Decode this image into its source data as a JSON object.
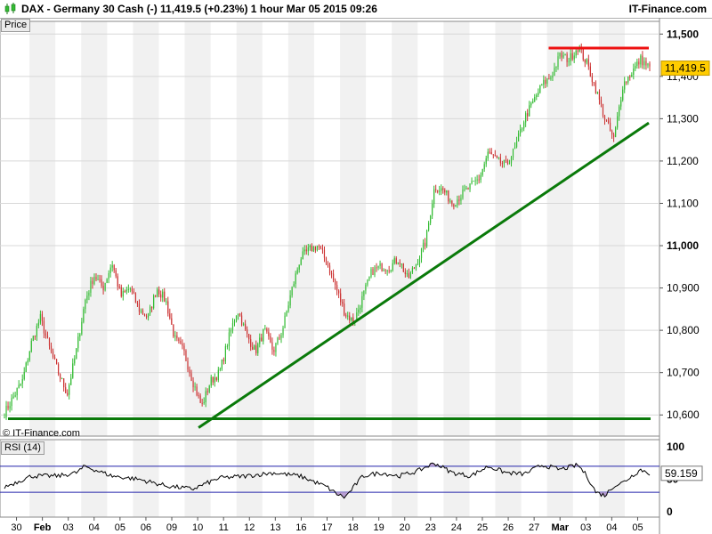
{
  "header": {
    "title": "DAX - Germany 30 Cash (-)      11,419.5 (+0.23%)      1 hour  Mar 05 2015 09:26",
    "brand": "IT-Finance.com"
  },
  "credit": "© IT-Finance.com",
  "colors": {
    "up": "#33bb33",
    "down": "#cc3333",
    "trendline": "#0a7a0a",
    "resistance": "#ee1111",
    "rsi_line": "#000000",
    "rsi_bands": "#2222aa",
    "rsi_fill": "#b59ad0",
    "price_tag": "#ffcc00"
  },
  "chart_data": [
    {
      "type": "candlestick",
      "title": "Price",
      "ylim": [
        10550,
        11530
      ],
      "yticks": [
        "11,500",
        "11,400",
        "11,300",
        "11,200",
        "11,100",
        "11,000",
        "10,900",
        "10,800",
        "10,700",
        "10,600"
      ],
      "ytick_values": [
        11500,
        11400,
        11300,
        11200,
        11100,
        11000,
        10900,
        10800,
        10700,
        10600
      ],
      "last_value": 11419.5,
      "last_label": "11,419.5",
      "xticks": [
        "30",
        "Feb",
        "03",
        "04",
        "05",
        "06",
        "09",
        "10",
        "11",
        "12",
        "13",
        "16",
        "17",
        "18",
        "19",
        "20",
        "23",
        "24",
        "25",
        "26",
        "27",
        "Mar",
        "03",
        "04",
        "05"
      ],
      "grid": true,
      "anchors": [
        [
          0,
          10605
        ],
        [
          2,
          10680
        ],
        [
          3,
          10770
        ],
        [
          4,
          10830
        ],
        [
          5,
          10760
        ],
        [
          6,
          10700
        ],
        [
          7,
          10650
        ],
        [
          8,
          10750
        ],
        [
          9,
          10870
        ],
        [
          10,
          10930
        ],
        [
          11,
          10900
        ],
        [
          12,
          10960
        ],
        [
          13,
          10880
        ],
        [
          14,
          10900
        ],
        [
          15,
          10850
        ],
        [
          16,
          10830
        ],
        [
          17,
          10900
        ],
        [
          18,
          10870
        ],
        [
          19,
          10780
        ],
        [
          20,
          10750
        ],
        [
          21,
          10680
        ],
        [
          22,
          10620
        ],
        [
          23,
          10680
        ],
        [
          24,
          10700
        ],
        [
          25,
          10780
        ],
        [
          26,
          10850
        ],
        [
          27,
          10790
        ],
        [
          28,
          10750
        ],
        [
          29,
          10800
        ],
        [
          30,
          10750
        ],
        [
          31,
          10800
        ],
        [
          32,
          10890
        ],
        [
          33,
          10970
        ],
        [
          34,
          10990
        ],
        [
          35,
          11000
        ],
        [
          36,
          10960
        ],
        [
          37,
          10900
        ],
        [
          38,
          10840
        ],
        [
          39,
          10820
        ],
        [
          40,
          10880
        ],
        [
          41,
          10940
        ],
        [
          42,
          10950
        ],
        [
          43,
          10950
        ],
        [
          44,
          10970
        ],
        [
          45,
          10920
        ],
        [
          46,
          10960
        ],
        [
          47,
          11010
        ],
        [
          48,
          11140
        ],
        [
          49,
          11130
        ],
        [
          50,
          11100
        ],
        [
          51,
          11120
        ],
        [
          52,
          11140
        ],
        [
          53,
          11160
        ],
        [
          54,
          11220
        ],
        [
          55,
          11200
        ],
        [
          56,
          11190
        ],
        [
          57,
          11230
        ],
        [
          58,
          11300
        ],
        [
          59,
          11340
        ],
        [
          60,
          11380
        ],
        [
          61,
          11400
        ],
        [
          62,
          11450
        ],
        [
          63,
          11440
        ],
        [
          64,
          11470
        ],
        [
          65,
          11430
        ],
        [
          66,
          11370
        ],
        [
          67,
          11300
        ],
        [
          68,
          11250
        ],
        [
          69,
          11380
        ],
        [
          70,
          11410
        ],
        [
          71,
          11440
        ],
        [
          72,
          11420
        ]
      ],
      "annotations": [
        {
          "type": "trendline",
          "from": [
            21.5,
            10570
          ],
          "to": [
            72.3,
            11290
          ],
          "color": "trendline"
        },
        {
          "type": "horizontal",
          "from": [
            0,
            10591
          ],
          "to": [
            72.5,
            10591
          ],
          "color": "trendline"
        },
        {
          "type": "horizontal",
          "from": [
            61,
            11467
          ],
          "to": [
            72.3,
            11467
          ],
          "color": "resistance"
        }
      ]
    },
    {
      "type": "line",
      "title": "RSI (14)",
      "ylim": [
        0,
        100
      ],
      "yticks": [
        "100",
        "50",
        "0"
      ],
      "ytick_values": [
        100,
        50,
        0
      ],
      "bands": [
        70,
        30
      ],
      "last_value": 59.159,
      "last_label": "59.159",
      "grid": true,
      "anchors": [
        [
          0,
          38
        ],
        [
          3,
          55
        ],
        [
          6,
          55
        ],
        [
          8,
          60
        ],
        [
          9,
          70
        ],
        [
          12,
          55
        ],
        [
          15,
          50
        ],
        [
          18,
          40
        ],
        [
          21,
          35
        ],
        [
          24,
          52
        ],
        [
          27,
          55
        ],
        [
          30,
          60
        ],
        [
          33,
          55
        ],
        [
          36,
          38
        ],
        [
          37,
          28
        ],
        [
          38,
          22
        ],
        [
          40,
          55
        ],
        [
          42,
          60
        ],
        [
          44,
          55
        ],
        [
          46,
          62
        ],
        [
          48,
          75
        ],
        [
          50,
          60
        ],
        [
          52,
          55
        ],
        [
          54,
          70
        ],
        [
          56,
          60
        ],
        [
          58,
          58
        ],
        [
          60,
          72
        ],
        [
          62,
          65
        ],
        [
          64,
          72
        ],
        [
          65,
          55
        ],
        [
          66,
          30
        ],
        [
          67,
          25
        ],
        [
          68,
          40
        ],
        [
          69,
          45
        ],
        [
          70,
          55
        ],
        [
          71,
          65
        ],
        [
          72,
          59
        ]
      ]
    }
  ]
}
